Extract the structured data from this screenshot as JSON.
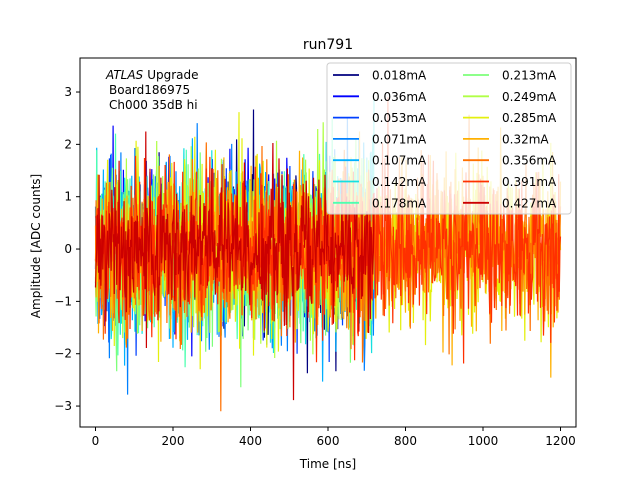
{
  "chart_data": {
    "type": "line",
    "title": "run791",
    "xlabel": "Time [ns]",
    "ylabel": "Amplitude [ADC counts]",
    "xlim": [
      -40,
      1240
    ],
    "ylim": [
      -3.4,
      3.65
    ],
    "xticks": [
      0,
      200,
      400,
      600,
      800,
      1000,
      1200
    ],
    "yticks": [
      -3,
      -2,
      -1,
      0,
      1,
      2,
      3
    ],
    "grid": false,
    "legend_position": "top-right",
    "legend_columns": 2,
    "annotation": {
      "line1_italic": "ATLAS",
      "line1_rest": "Upgrade",
      "line2": "Board186975",
      "line3": "Ch000 35dB hi"
    },
    "series": [
      {
        "name": "0.018mA",
        "color": "#00007f",
        "t_max": 720,
        "amp": 0.7
      },
      {
        "name": "0.036mA",
        "color": "#0000ff",
        "t_max": 720,
        "amp": 0.72
      },
      {
        "name": "0.053mA",
        "color": "#0040ff",
        "t_max": 720,
        "amp": 0.72
      },
      {
        "name": "0.071mA",
        "color": "#0080ff",
        "t_max": 720,
        "amp": 0.74
      },
      {
        "name": "0.107mA",
        "color": "#00b0ff",
        "t_max": 720,
        "amp": 0.74
      },
      {
        "name": "0.142mA",
        "color": "#15e0e0",
        "t_max": 720,
        "amp": 0.75
      },
      {
        "name": "0.178mA",
        "color": "#4dffb0",
        "t_max": 720,
        "amp": 0.76
      },
      {
        "name": "0.213mA",
        "color": "#7dff7a",
        "t_max": 720,
        "amp": 0.76
      },
      {
        "name": "0.249mA",
        "color": "#b0ff46",
        "t_max": 720,
        "amp": 0.76
      },
      {
        "name": "0.285mA",
        "color": "#e4f00e",
        "t_max": 1200,
        "amp": 0.76
      },
      {
        "name": "0.32mA",
        "color": "#ffb000",
        "t_max": 1200,
        "amp": 0.74
      },
      {
        "name": "0.356mA",
        "color": "#ff7000",
        "t_max": 1200,
        "amp": 0.72
      },
      {
        "name": "0.391mA",
        "color": "#ff3000",
        "t_max": 1200,
        "amp": 0.7
      },
      {
        "name": "0.427mA",
        "color": "#cc0000",
        "t_max": 720,
        "amp": 0.68
      }
    ]
  }
}
